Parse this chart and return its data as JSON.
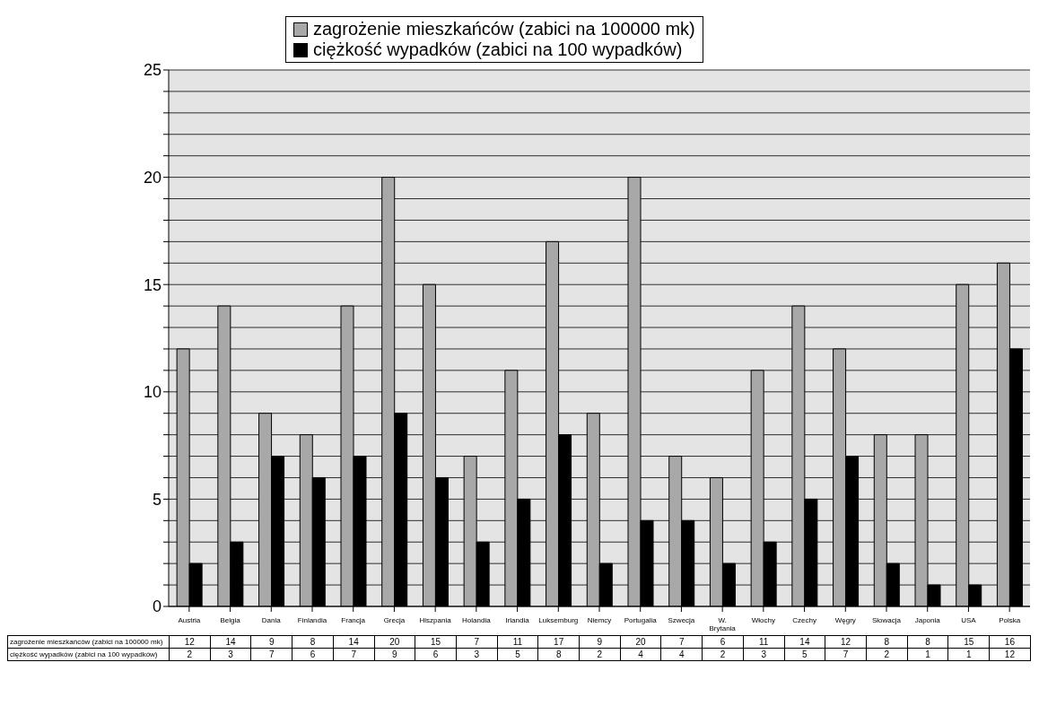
{
  "chart_data": {
    "type": "bar",
    "categories": [
      "Austria",
      "Belgia",
      "Dania",
      "Finlandia",
      "Francja",
      "Grecja",
      "Hiszpania",
      "Holandia",
      "Irlandia",
      "Luksemburg",
      "Niemcy",
      "Portugalia",
      "Szwecja",
      "W. Brytania",
      "Włochy",
      "Czechy",
      "Węgry",
      "Słowacja",
      "Japonia",
      "USA",
      "Polska"
    ],
    "series": [
      {
        "name": "zagrożenie mieszkańców (zabici na 100000 mk)",
        "color": "#a8a8a8",
        "values": [
          12,
          14,
          9,
          8,
          14,
          20,
          15,
          7,
          11,
          17,
          9,
          20,
          7,
          6,
          11,
          14,
          12,
          8,
          8,
          15,
          16
        ]
      },
      {
        "name": "ciężkość wypadków (zabici na 100 wypadków)",
        "color": "#000000",
        "values": [
          2,
          3,
          7,
          6,
          7,
          9,
          6,
          3,
          5,
          8,
          2,
          4,
          4,
          2,
          3,
          5,
          7,
          2,
          1,
          1,
          12
        ]
      }
    ],
    "ylim": [
      0,
      25
    ],
    "yticks": [
      0,
      {
        "value": 1,
        "label": null
      },
      {
        "value": 2,
        "label": null
      },
      {
        "value": 3,
        "label": null
      },
      {
        "value": 4,
        "label": null
      },
      5,
      {
        "value": 6,
        "label": null
      },
      {
        "value": 7,
        "label": null
      },
      {
        "value": 8,
        "label": null
      },
      {
        "value": 9,
        "label": null
      },
      10,
      {
        "value": 11,
        "label": null
      },
      {
        "value": 12,
        "label": null
      },
      {
        "value": 13,
        "label": null
      },
      {
        "value": 14,
        "label": null
      },
      15,
      {
        "value": 16,
        "label": null
      },
      {
        "value": 17,
        "label": null
      },
      {
        "value": 18,
        "label": null
      },
      {
        "value": 19,
        "label": null
      },
      20,
      {
        "value": 21,
        "label": null
      },
      {
        "value": 22,
        "label": null
      },
      {
        "value": 23,
        "label": null
      },
      {
        "value": 24,
        "label": null
      },
      25
    ],
    "grid": "y",
    "legend": "top left",
    "data_labels": true
  }
}
